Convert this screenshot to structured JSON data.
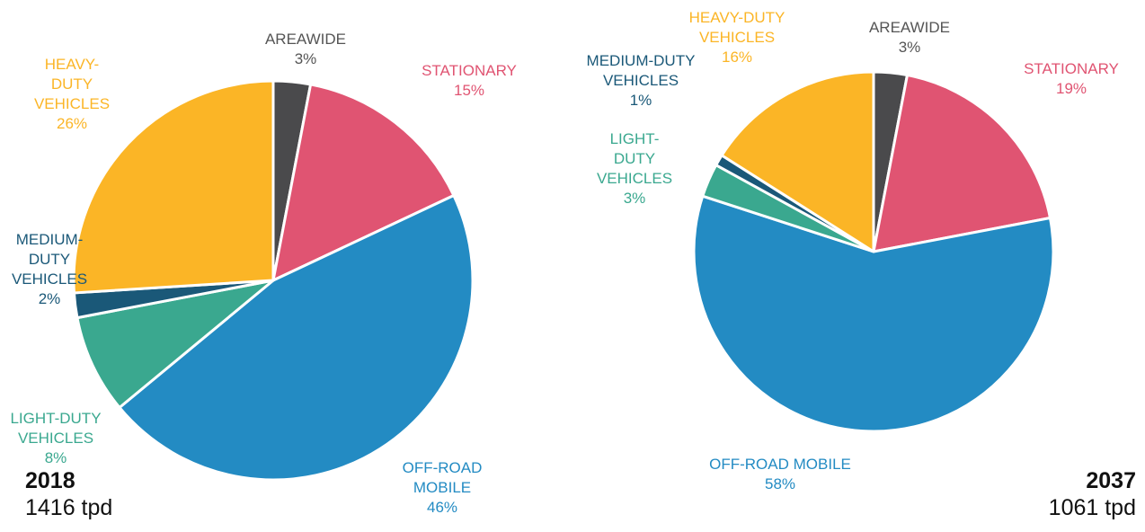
{
  "chart_data": [
    {
      "type": "pie",
      "title": "2018",
      "subtitle": "1416 tpd",
      "categories": [
        "AREAWIDE",
        "STATIONARY",
        "OFF-ROAD MOBILE",
        "LIGHT-DUTY VEHICLES",
        "MEDIUM-DUTY VEHICLES",
        "HEAVY-DUTY VEHICLES"
      ],
      "values": [
        3,
        15,
        46,
        8,
        2,
        26
      ],
      "value_labels": [
        "3%",
        "15%",
        "46%",
        "8%",
        "2%",
        "26%"
      ],
      "colors": [
        "#4a4a4c",
        "#e05472",
        "#238bc3",
        "#3aa88f",
        "#1a5878",
        "#fbb526"
      ]
    },
    {
      "type": "pie",
      "title": "2037",
      "subtitle": "1061 tpd",
      "categories": [
        "AREAWIDE",
        "STATIONARY",
        "OFF-ROAD MOBILE",
        "LIGHT-DUTY VEHICLES",
        "MEDIUM-DUTY VEHICLES",
        "HEAVY-DUTY VEHICLES"
      ],
      "values": [
        3,
        19,
        58,
        3,
        1,
        16
      ],
      "value_labels": [
        "3%",
        "19%",
        "58%",
        "3%",
        "1%",
        "16%"
      ],
      "colors": [
        "#4a4a4c",
        "#e05472",
        "#238bc3",
        "#3aa88f",
        "#1a5878",
        "#fbb526"
      ]
    }
  ]
}
